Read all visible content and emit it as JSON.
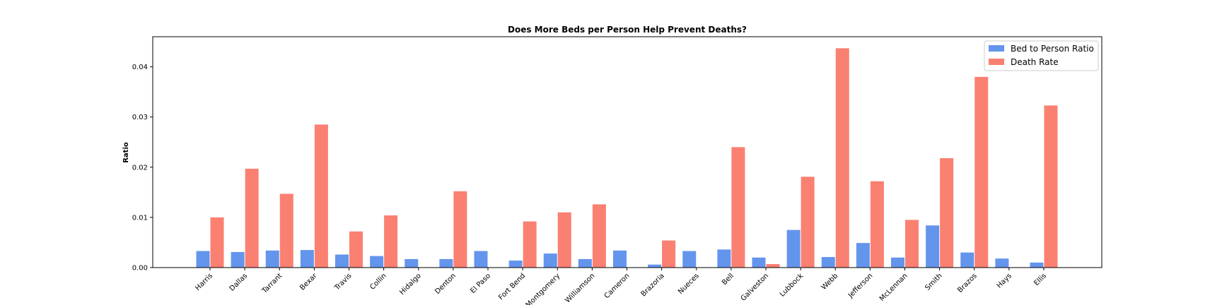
{
  "chart_data": {
    "type": "bar",
    "title": "Does More Beds per Person Help Prevent Deaths?",
    "xlabel": "",
    "ylabel": "Ratio",
    "ylim": [
      0,
      0.046
    ],
    "yticks": [
      0.0,
      0.01,
      0.02,
      0.03,
      0.04
    ],
    "ytick_labels": [
      "0.00",
      "0.01",
      "0.02",
      "0.03",
      "0.04"
    ],
    "grid": false,
    "legend_position": "top-right",
    "categories": [
      "Harris",
      "Dallas",
      "Tarrant",
      "Bexar",
      "Travis",
      "Collin",
      "Hidalgo",
      "Denton",
      "El Paso",
      "Fort Bend",
      "Montgomery",
      "Williamson",
      "Cameron",
      "Brazoria",
      "Nueces",
      "Bell",
      "Galveston",
      "Lubbock",
      "Webb",
      "Jefferson",
      "McLennan",
      "Smith",
      "Brazos",
      "Hays",
      "Ellis"
    ],
    "series": [
      {
        "name": "Bed to Person Ratio",
        "color": "#6495ed",
        "values": [
          0.0033,
          0.0031,
          0.0034,
          0.0035,
          0.0026,
          0.0023,
          0.0017,
          0.0017,
          0.0033,
          0.0014,
          0.0028,
          0.0017,
          0.0034,
          0.0006,
          0.0033,
          0.0036,
          0.002,
          0.0075,
          0.0021,
          0.0049,
          0.002,
          0.0084,
          0.003,
          0.0018,
          0.001
        ]
      },
      {
        "name": "Death Rate",
        "color": "#fa8072",
        "values": [
          0.01,
          0.0197,
          0.0147,
          0.0285,
          0.0072,
          0.0104,
          0.0,
          0.0152,
          0.0,
          0.0092,
          0.011,
          0.0126,
          0.0,
          0.0054,
          0.0,
          0.024,
          0.0007,
          0.0181,
          0.0437,
          0.0172,
          0.0095,
          0.0218,
          0.038,
          0.0,
          0.0323
        ]
      }
    ]
  }
}
